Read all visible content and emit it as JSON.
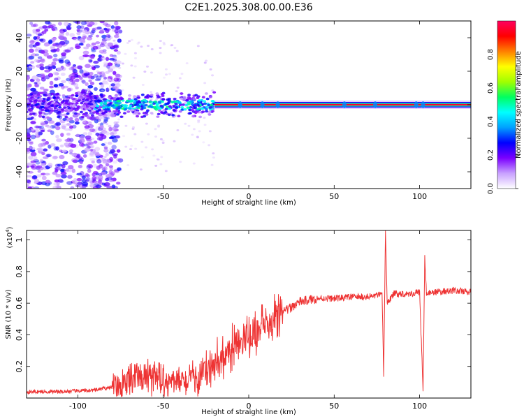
{
  "title": "C2E1.2025.308.00.00.E36",
  "chart_data": [
    {
      "type": "heatmap",
      "xlabel": "Height of straight line (km)",
      "ylabel": "Frequency (Hz)",
      "xlim": [
        -130,
        130
      ],
      "ylim": [
        -50,
        50
      ],
      "xticks": [
        -100,
        -50,
        0,
        50,
        100
      ],
      "yticks": [
        -40,
        -20,
        0,
        20,
        40
      ],
      "colorbar": {
        "label": "Normalized spectral amplitude",
        "range": [
          0,
          1
        ],
        "ticks": [
          0.0,
          0.2,
          0.4,
          0.6,
          0.8
        ],
        "colormap": [
          "#ffffff",
          "#c8a0ff",
          "#7b00ff",
          "#0000ff",
          "#00a0ff",
          "#00ffff",
          "#00ff60",
          "#a0ff00",
          "#ffff00",
          "#ff8000",
          "#ff0000",
          "#ff0060"
        ]
      },
      "features": [
        {
          "x_range": [
            -130,
            -90
          ],
          "frequency_spread_hz": 50,
          "amplitude": 0.15,
          "description": "diffuse noise"
        },
        {
          "x_range": [
            -90,
            -20
          ],
          "frequency_spread_hz": 8,
          "amplitude": 0.4
        },
        {
          "x_range": [
            -20,
            130
          ],
          "frequency_center_hz": 0,
          "amplitude": 0.95
        }
      ]
    },
    {
      "type": "line",
      "xlabel": "Height of straight line (km)",
      "ylabel": "SNR (10 * v/v)",
      "y_scale_label": "(x10",
      "y_scale_exp": "4",
      "xlim": [
        -130,
        130
      ],
      "ylim": [
        0,
        1.06
      ],
      "xticks": [
        -100,
        -50,
        0,
        50,
        100
      ],
      "yticks": [
        0.2,
        0.4,
        0.6,
        0.8,
        1.0
      ],
      "line_color": "#ee3333",
      "series": [
        {
          "x": [
            -130,
            -110,
            -90,
            -80,
            -70,
            -60,
            -50,
            -40,
            -30,
            -20,
            -10,
            0,
            10,
            20,
            30,
            40,
            50,
            60,
            70,
            75,
            78,
            79,
            80,
            81,
            85,
            90,
            95,
            100,
            102,
            103,
            104,
            106,
            110,
            120,
            130
          ],
          "y": [
            0.04,
            0.04,
            0.05,
            0.07,
            0.12,
            0.12,
            0.11,
            0.1,
            0.12,
            0.2,
            0.3,
            0.38,
            0.45,
            0.54,
            0.61,
            0.63,
            0.63,
            0.64,
            0.64,
            0.65,
            0.65,
            0.15,
            1.06,
            0.6,
            0.66,
            0.66,
            0.66,
            0.67,
            0.05,
            0.9,
            0.65,
            0.67,
            0.67,
            0.68,
            0.67
          ]
        }
      ]
    }
  ]
}
